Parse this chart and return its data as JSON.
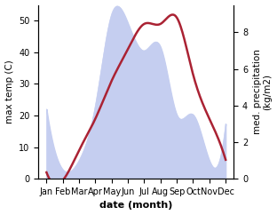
{
  "months": [
    "Jan",
    "Feb",
    "Mar",
    "Apr",
    "May",
    "Jun",
    "Jul",
    "Aug",
    "Sep",
    "Oct",
    "Nov",
    "Dec"
  ],
  "month_positions": [
    1,
    2,
    3,
    4,
    5,
    6,
    7,
    8,
    9,
    10,
    11,
    12
  ],
  "temperature": [
    2.0,
    -0.5,
    9.0,
    19.0,
    31.0,
    41.0,
    49.0,
    49.0,
    51.0,
    33.0,
    19.0,
    6.0
  ],
  "precipitation": [
    3.8,
    0.5,
    1.0,
    4.0,
    9.0,
    8.5,
    7.0,
    7.2,
    3.5,
    3.5,
    1.0,
    3.0
  ],
  "temp_color": "#aa2233",
  "precip_fill_color": "#c5cef0",
  "ylim_temp": [
    0,
    55
  ],
  "ylim_precip": [
    0,
    9.5
  ],
  "yticks_temp": [
    0,
    10,
    20,
    30,
    40,
    50
  ],
  "yticks_precip": [
    0,
    2,
    4,
    6,
    8
  ],
  "ylabel_left": "max temp (C)",
  "ylabel_right": "med. precipitation\n(kg/m2)",
  "xlabel": "date (month)",
  "bg_color": "#ffffff",
  "tick_fontsize": 7,
  "label_fontsize": 7.5,
  "xlabel_fontsize": 8,
  "linewidth": 1.8
}
